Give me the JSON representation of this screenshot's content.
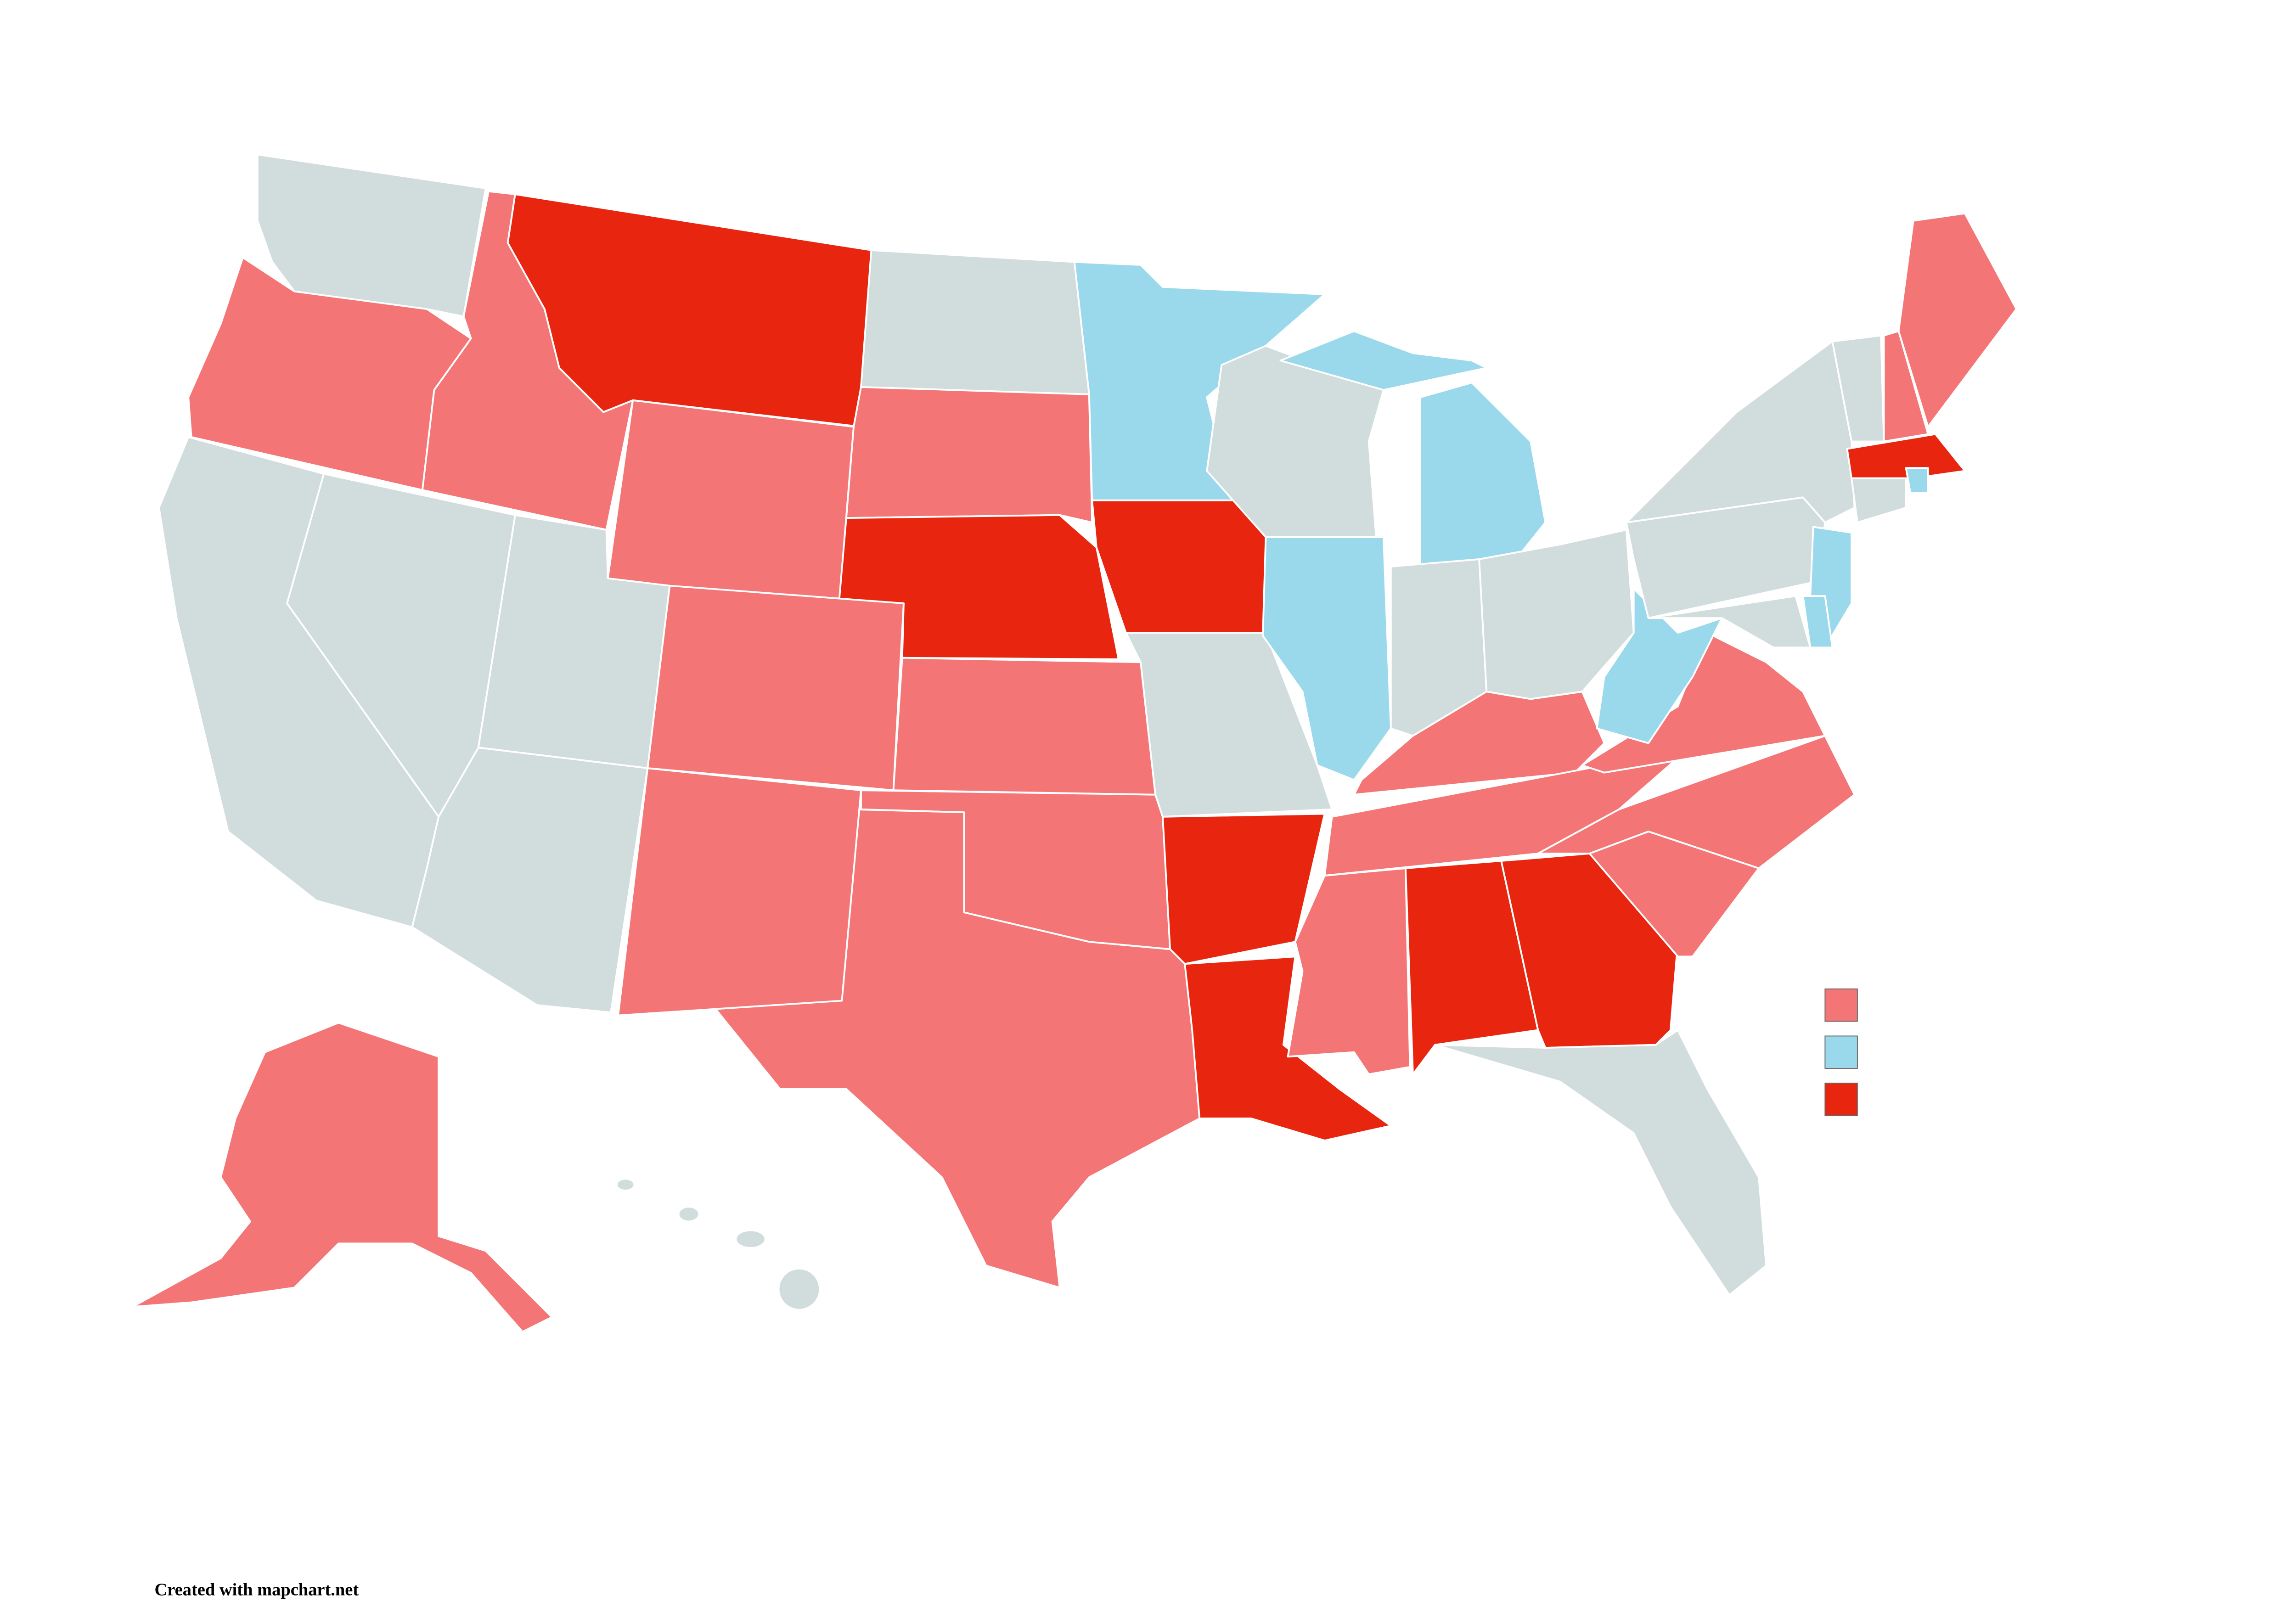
{
  "credit": "Created with mapchart.net"
}
